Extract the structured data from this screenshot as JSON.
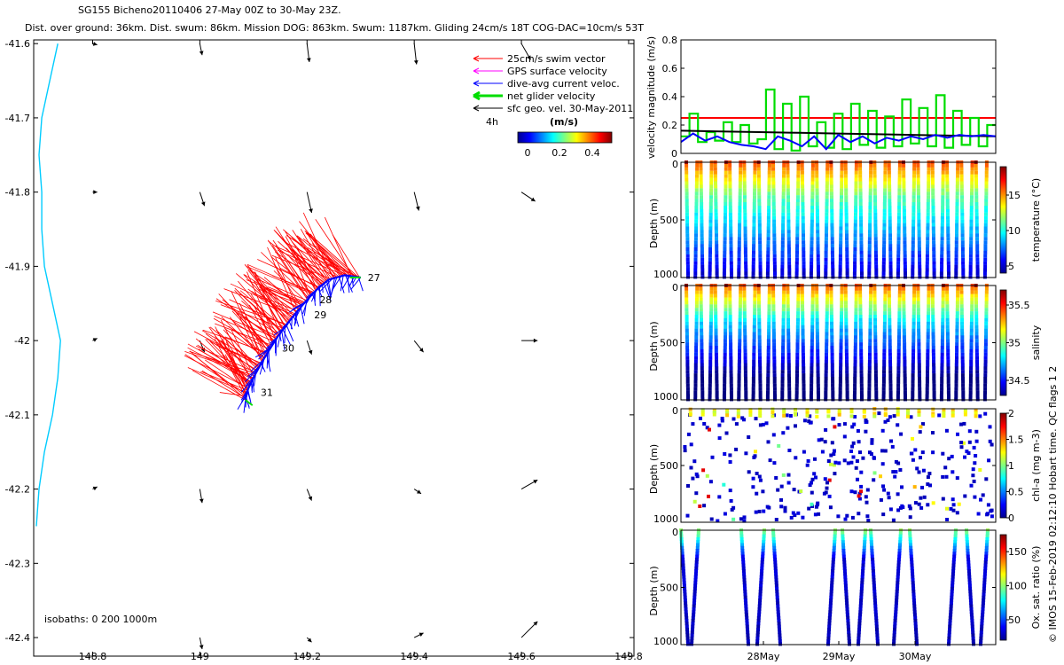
{
  "header": {
    "line1": "SG155 Bicheno20110406 27-May 00Z to 30-May 23Z.",
    "line2": "Dist. over ground: 36km. Dist. swum: 86km. Mission DOG: 863km. Swum: 1187km. Gliding 24cm/s 18T COG-DAC=10cm/s 53T"
  },
  "credit": "© IMOS 15-Feb-2019 02:12:10 Hobart time. QC flags 1  2",
  "colors": {
    "swim": "#ff0000",
    "gps": "#ff00ff",
    "dac": "#0000ff",
    "net": "#00dd00",
    "geo": "#000000",
    "coast": "#00ccff"
  },
  "chart_data": [
    {
      "type": "scatter",
      "id": "track-map",
      "x_ticks": [
        "148.8",
        "149",
        "149.2",
        "149.4",
        "149.6",
        "149.8"
      ],
      "y_ticks": [
        "-41.6",
        "-41.7",
        "-41.8",
        "-41.9",
        "-42",
        "-42.1",
        "-42.2",
        "-42.3",
        "-42.4"
      ],
      "xlim": [
        148.69,
        149.81
      ],
      "ylim": [
        -42.425,
        -41.595
      ],
      "legend": [
        {
          "label": "25cm/s swim vector",
          "color": "#ff0000"
        },
        {
          "label": "GPS surface velocity",
          "color": "#ff00ff"
        },
        {
          "label": "dive-avg current veloc.",
          "color": "#0000ff"
        },
        {
          "label": "net glider velocity",
          "color": "#00dd00"
        },
        {
          "label": "sfc geo. vel. 30-May-2011",
          "color": "#000000"
        }
      ],
      "legend_position": "top-right",
      "colorbar": {
        "label": "(m/s)",
        "note": "4h",
        "ticks": [
          "0",
          "0.2",
          "0.4"
        ],
        "range": [
          0,
          0.5
        ]
      },
      "isobath_label": "isobaths: 0   200  1000m",
      "day_labels": [
        {
          "text": "27",
          "lon": 149.3,
          "lat": -41.915
        },
        {
          "text": "28",
          "lon": 149.21,
          "lat": -41.945
        },
        {
          "text": "29",
          "lon": 149.2,
          "lat": -41.965
        },
        {
          "text": "30",
          "lon": 149.14,
          "lat": -42.01
        },
        {
          "text": "31",
          "lon": 149.1,
          "lat": -42.07
        }
      ],
      "track": [
        [
          149.3,
          -41.915
        ],
        [
          149.27,
          -41.912
        ],
        [
          149.24,
          -41.918
        ],
        [
          149.22,
          -41.93
        ],
        [
          149.2,
          -41.945
        ],
        [
          149.18,
          -41.962
        ],
        [
          149.16,
          -41.98
        ],
        [
          149.145,
          -41.995
        ],
        [
          149.13,
          -42.012
        ],
        [
          149.115,
          -42.03
        ],
        [
          149.1,
          -42.05
        ],
        [
          149.09,
          -42.065
        ],
        [
          149.085,
          -42.08
        ]
      ],
      "coast": [
        [
          148.735,
          -41.6
        ],
        [
          148.72,
          -41.65
        ],
        [
          148.705,
          -41.7
        ],
        [
          148.7,
          -41.75
        ],
        [
          148.705,
          -41.8
        ],
        [
          148.705,
          -41.85
        ],
        [
          148.71,
          -41.9
        ],
        [
          148.725,
          -41.95
        ],
        [
          148.74,
          -42.0
        ],
        [
          148.735,
          -42.05
        ],
        [
          148.725,
          -42.1
        ],
        [
          148.71,
          -42.15
        ],
        [
          148.7,
          -42.2
        ],
        [
          148.695,
          -42.25
        ]
      ],
      "geo_vectors": [
        {
          "lon": 148.8,
          "lat": -41.6,
          "u": 0.02,
          "v": -0.005
        },
        {
          "lon": 149.0,
          "lat": -41.6,
          "u": 0.01,
          "v": -0.05
        },
        {
          "lon": 149.2,
          "lat": -41.6,
          "u": 0.01,
          "v": -0.08
        },
        {
          "lon": 149.4,
          "lat": -41.6,
          "u": 0.01,
          "v": -0.09
        },
        {
          "lon": 149.6,
          "lat": -41.6,
          "u": 0.04,
          "v": -0.07
        },
        {
          "lon": 148.8,
          "lat": -41.8,
          "u": 0.02,
          "v": 0.0
        },
        {
          "lon": 149.0,
          "lat": -41.8,
          "u": 0.02,
          "v": -0.06
        },
        {
          "lon": 149.2,
          "lat": -41.8,
          "u": 0.02,
          "v": -0.09
        },
        {
          "lon": 149.4,
          "lat": -41.8,
          "u": 0.02,
          "v": -0.08
        },
        {
          "lon": 149.6,
          "lat": -41.8,
          "u": 0.06,
          "v": -0.04
        },
        {
          "lon": 148.8,
          "lat": -42.0,
          "u": 0.02,
          "v": 0.01
        },
        {
          "lon": 149.0,
          "lat": -42.0,
          "u": 0.02,
          "v": -0.05
        },
        {
          "lon": 149.2,
          "lat": -42.0,
          "u": 0.02,
          "v": -0.06
        },
        {
          "lon": 149.4,
          "lat": -42.0,
          "u": 0.04,
          "v": -0.05
        },
        {
          "lon": 149.6,
          "lat": -42.0,
          "u": 0.07,
          "v": 0.0
        },
        {
          "lon": 148.8,
          "lat": -42.2,
          "u": 0.02,
          "v": 0.01
        },
        {
          "lon": 149.0,
          "lat": -42.2,
          "u": 0.01,
          "v": -0.06
        },
        {
          "lon": 149.2,
          "lat": -42.2,
          "u": 0.02,
          "v": -0.05
        },
        {
          "lon": 149.4,
          "lat": -42.2,
          "u": 0.03,
          "v": -0.02
        },
        {
          "lon": 149.6,
          "lat": -42.2,
          "u": 0.07,
          "v": 0.04
        },
        {
          "lon": 149.0,
          "lat": -42.4,
          "u": 0.01,
          "v": -0.05
        },
        {
          "lon": 149.2,
          "lat": -42.4,
          "u": 0.02,
          "v": -0.02
        },
        {
          "lon": 149.4,
          "lat": -42.4,
          "u": 0.04,
          "v": 0.02
        },
        {
          "lon": 149.6,
          "lat": -42.4,
          "u": 0.07,
          "v": 0.07
        }
      ]
    },
    {
      "type": "line",
      "id": "velocity-panel",
      "ylabel": "velocity magnitude (m/s)",
      "y_ticks": [
        "0",
        "0.2",
        "0.4",
        "0.6",
        "0.8"
      ],
      "ylim": [
        0,
        0.8
      ],
      "xlim": [
        0,
        4
      ],
      "series": [
        {
          "color": "#ff0000",
          "values": [
            0.25,
            0.25
          ]
        },
        {
          "color": "#00dd00",
          "values": [
            0.12,
            0.28,
            0.08,
            0.15,
            0.09,
            0.22,
            0.08,
            0.2,
            0.07,
            0.1,
            0.45,
            0.03,
            0.35,
            0.02,
            0.4,
            0.05,
            0.22,
            0.04,
            0.28,
            0.03,
            0.35,
            0.06,
            0.3,
            0.04,
            0.26,
            0.05,
            0.38,
            0.07,
            0.32,
            0.05,
            0.41,
            0.04,
            0.3,
            0.06,
            0.25,
            0.05,
            0.2
          ]
        },
        {
          "color": "#000000",
          "values": [
            0.16,
            0.155,
            0.15,
            0.145,
            0.14,
            0.135,
            0.13,
            0.125,
            0.12
          ]
        },
        {
          "color": "#0000ff",
          "values": [
            0.08,
            0.14,
            0.09,
            0.12,
            0.08,
            0.06,
            0.05,
            0.03,
            0.12,
            0.09,
            0.05,
            0.12,
            0.03,
            0.13,
            0.08,
            0.12,
            0.07,
            0.11,
            0.09,
            0.12,
            0.1,
            0.13,
            0.11,
            0.13,
            0.12,
            0.13,
            0.12
          ]
        }
      ]
    },
    {
      "type": "scatter",
      "id": "temperature-panel",
      "ylabel": "Depth (m)",
      "clabel": "temperature (°C)",
      "y_ticks": [
        "0",
        "500",
        "1000"
      ],
      "c_ticks": [
        "15",
        "10",
        "5"
      ],
      "c_tick_values": [
        15,
        10,
        5
      ],
      "clim": [
        4,
        19
      ],
      "pattern": "profiles",
      "profiles": 42,
      "colormap": "jet"
    },
    {
      "type": "scatter",
      "id": "salinity-panel",
      "ylabel": "Depth (m)",
      "clabel": "salinity",
      "y_ticks": [
        "0",
        "500",
        "1000"
      ],
      "c_ticks": [
        "35.5",
        "35",
        "34.5"
      ],
      "c_tick_values": [
        35.5,
        35,
        34.5
      ],
      "clim": [
        34.3,
        35.7
      ],
      "pattern": "profiles",
      "profiles": 42,
      "colormap": "jet"
    },
    {
      "type": "scatter",
      "id": "chla-panel",
      "ylabel": "Depth (m)",
      "clabel": "chl-a (mg m-3)",
      "y_ticks": [
        "0",
        "500",
        "1000"
      ],
      "c_ticks": [
        "2",
        "1.5",
        "1",
        "0.5",
        "0"
      ],
      "c_tick_values": [
        2,
        1.5,
        1,
        0.5,
        0
      ],
      "clim": [
        0,
        2
      ],
      "pattern": "sparse",
      "colormap": "jet"
    },
    {
      "type": "scatter",
      "id": "oxygen-panel",
      "ylabel": "Depth (m)",
      "clabel": "Ox. sat. ratio (%)",
      "x_ticks": [
        "28May",
        "29May",
        "30May"
      ],
      "y_ticks": [
        "0",
        "500",
        "1000"
      ],
      "c_ticks": [
        "150",
        "100",
        "50"
      ],
      "c_tick_values": [
        150,
        100,
        50
      ],
      "clim": [
        20,
        175
      ],
      "pattern": "groups",
      "colormap": "jet"
    }
  ]
}
